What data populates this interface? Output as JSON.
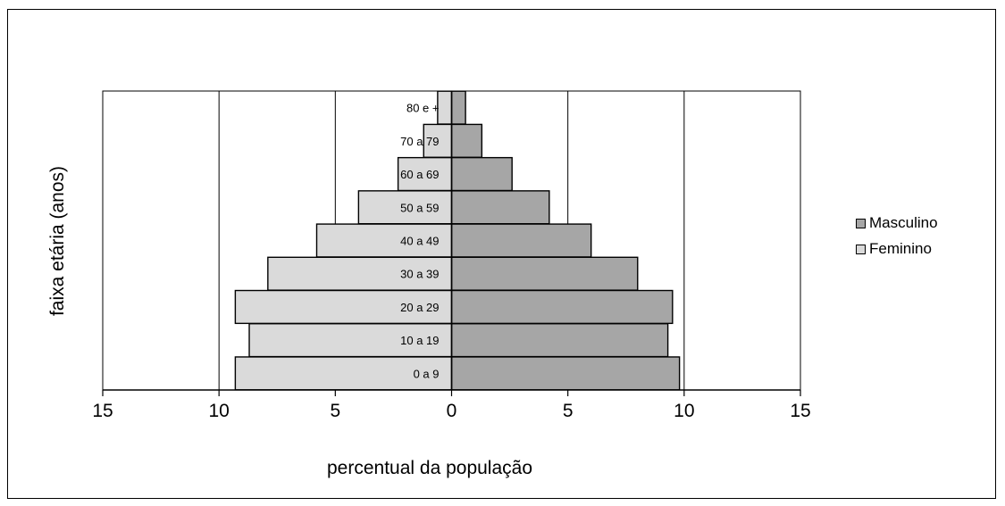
{
  "chart_data": {
    "type": "bar",
    "orientation": "horizontal",
    "stacked_pyramid": true,
    "categories": [
      "0 a 9",
      "10 a 19",
      "20 a 29",
      "30 a 39",
      "40 a 49",
      "50 a 59",
      "60 a 69",
      "70 a 79",
      "80 e +"
    ],
    "series": [
      {
        "name": "Masculino",
        "color": "#a6a6a6",
        "values": [
          9.8,
          9.3,
          9.5,
          8.0,
          6.0,
          4.2,
          2.6,
          1.3,
          0.6
        ]
      },
      {
        "name": "Feminino",
        "color": "#dadada",
        "values": [
          9.3,
          8.7,
          9.3,
          7.9,
          5.8,
          4.0,
          2.3,
          1.2,
          0.6
        ]
      }
    ],
    "xlabel": "percentual da população",
    "ylabel": "faixa etária (anos)",
    "xlim": [
      -15,
      15
    ],
    "xticks": [
      -15,
      -10,
      -5,
      0,
      5,
      10,
      15
    ],
    "xtick_labels": [
      "15",
      "10",
      "5",
      "0",
      "5",
      "10",
      "15"
    ],
    "grid": true,
    "legend_position": "right"
  }
}
